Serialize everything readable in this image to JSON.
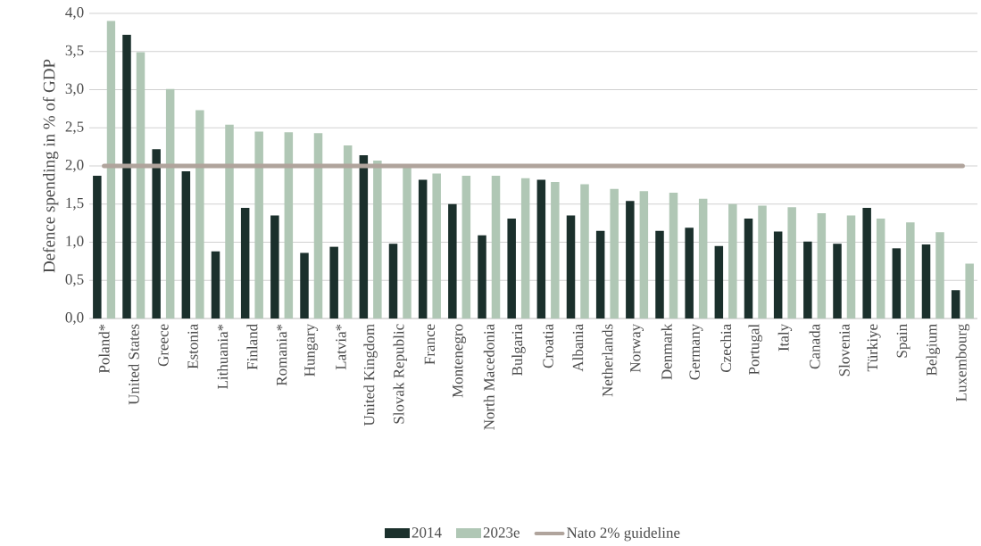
{
  "chart_data": {
    "type": "bar",
    "ylabel": "Defence spending in % of GDP",
    "categories": [
      "Poland*",
      "United States",
      "Greece",
      "Estonia",
      "Lithuania*",
      "Finland",
      "Romania*",
      "Hungary",
      "Latvia*",
      "United Kingdom",
      "Slovak Republic",
      "France",
      "Montenegro",
      "North Macedonia",
      "Bulgaria",
      "Croatia",
      "Albania",
      "Netherlands",
      "Norway",
      "Denmark",
      "Germany",
      "Czechia",
      "Portugal",
      "Italy",
      "Canada",
      "Slovenia",
      "Türkiye",
      "Spain",
      "Belgium",
      "Luxembourg"
    ],
    "series": [
      {
        "name": "2014",
        "color": "#1b302c",
        "values": [
          1.87,
          3.72,
          2.22,
          1.93,
          0.88,
          1.45,
          1.35,
          0.86,
          0.94,
          2.14,
          0.98,
          1.82,
          1.5,
          1.09,
          1.31,
          1.82,
          1.35,
          1.15,
          1.54,
          1.15,
          1.19,
          0.95,
          1.31,
          1.14,
          1.01,
          0.98,
          1.45,
          0.92,
          0.97,
          0.37
        ]
      },
      {
        "name": "2023e",
        "color": "#b0c7b5",
        "values": [
          3.9,
          3.49,
          3.01,
          2.73,
          2.54,
          2.45,
          2.44,
          2.43,
          2.27,
          2.07,
          2.0,
          1.9,
          1.87,
          1.87,
          1.84,
          1.79,
          1.76,
          1.7,
          1.67,
          1.65,
          1.57,
          1.5,
          1.48,
          1.46,
          1.38,
          1.35,
          1.31,
          1.26,
          1.13,
          0.72
        ]
      },
      {
        "name": "Nato 2% guideline",
        "type": "line",
        "color": "#b0a49c",
        "values": [
          2,
          2,
          2,
          2,
          2,
          2,
          2,
          2,
          2,
          2,
          2,
          2,
          2,
          2,
          2,
          2,
          2,
          2,
          2,
          2,
          2,
          2,
          2,
          2,
          2,
          2,
          2,
          2,
          2,
          2
        ]
      }
    ],
    "ylim": [
      0,
      4
    ],
    "yticks": [
      {
        "value": 0,
        "label": "0,0"
      },
      {
        "value": 0.5,
        "label": "0,5"
      },
      {
        "value": 1,
        "label": "1,0"
      },
      {
        "value": 1.5,
        "label": "1,5"
      },
      {
        "value": 2,
        "label": "2,0"
      },
      {
        "value": 2.5,
        "label": "2,5"
      },
      {
        "value": 3,
        "label": "3,0"
      },
      {
        "value": 3.5,
        "label": "3,5"
      },
      {
        "value": 4,
        "label": "4,0"
      }
    ],
    "grid": "y",
    "legend": "bottom"
  }
}
